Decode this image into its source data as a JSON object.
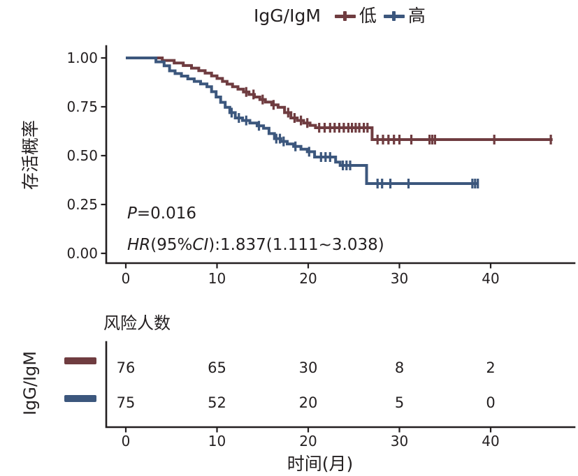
{
  "chart_data": {
    "type": "line",
    "subtype": "kaplan_meier_step",
    "title": "IgG/IgM",
    "xlabel": "时间(月)",
    "ylabel": "存活概率",
    "xlim": [
      0,
      49
    ],
    "ylim": [
      0,
      1
    ],
    "xticks": [
      0,
      10,
      20,
      30,
      40
    ],
    "ytick_values": [
      0,
      0.25,
      0.5,
      0.75,
      1
    ],
    "ytick_labels": [
      "0.00",
      "0.25",
      "0.50",
      "0.75",
      "1.00"
    ],
    "grid": false,
    "legend_position": "top",
    "axis_color": "#231f20",
    "annotations": {
      "p_italic": "P",
      "p_rest": "=0.016",
      "hr_italic": "HR",
      "hr_paren": "(95%",
      "ci_italic": "CI",
      "hr_rest": "):1.837(1.111~3.038)"
    },
    "series": [
      {
        "key": "low",
        "name": "低",
        "color": "#6F3C40",
        "steps": [
          [
            0,
            1
          ],
          [
            4,
            0.987
          ],
          [
            5.3,
            0.974
          ],
          [
            6.3,
            0.961
          ],
          [
            7.2,
            0.948
          ],
          [
            8,
            0.935
          ],
          [
            8.7,
            0.922
          ],
          [
            9.4,
            0.908
          ],
          [
            10,
            0.895
          ],
          [
            10.6,
            0.88
          ],
          [
            11.1,
            0.866
          ],
          [
            11.7,
            0.853
          ],
          [
            12.3,
            0.84
          ],
          [
            12.9,
            0.826
          ],
          [
            13.5,
            0.813
          ],
          [
            14.1,
            0.8
          ],
          [
            14.7,
            0.787
          ],
          [
            15.3,
            0.774
          ],
          [
            16,
            0.76
          ],
          [
            16.7,
            0.747
          ],
          [
            17.4,
            0.72
          ],
          [
            18.1,
            0.693
          ],
          [
            18.8,
            0.68
          ],
          [
            19.5,
            0.667
          ],
          [
            20.2,
            0.655
          ],
          [
            20.8,
            0.643
          ],
          [
            27,
            0.582
          ],
          [
            46.8,
            0.582
          ]
        ],
        "censor_times": [
          13.2,
          14,
          15,
          16.2,
          17.8,
          18.5,
          19.2,
          19.9,
          21.2,
          21.8,
          22.4,
          22.9,
          23.4,
          23.9,
          24.4,
          24.8,
          25.2,
          25.6,
          26.1,
          26.5,
          27.6,
          28.2,
          28.8,
          29.4,
          30,
          31.3,
          33.3,
          33.6,
          33.9,
          40.4,
          46.6
        ]
      },
      {
        "key": "high",
        "name": "高",
        "color": "#3C577D",
        "steps": [
          [
            0,
            1
          ],
          [
            3.3,
            0.98
          ],
          [
            4.2,
            0.96
          ],
          [
            4.8,
            0.934
          ],
          [
            5.4,
            0.92
          ],
          [
            6.1,
            0.907
          ],
          [
            6.8,
            0.893
          ],
          [
            7.5,
            0.88
          ],
          [
            8.2,
            0.867
          ],
          [
            8.9,
            0.853
          ],
          [
            9.4,
            0.827
          ],
          [
            9.9,
            0.8
          ],
          [
            10.4,
            0.773
          ],
          [
            10.9,
            0.747
          ],
          [
            11.4,
            0.72
          ],
          [
            12,
            0.693
          ],
          [
            12.8,
            0.68
          ],
          [
            13.6,
            0.667
          ],
          [
            14.4,
            0.653
          ],
          [
            15.1,
            0.64
          ],
          [
            15.7,
            0.613
          ],
          [
            16.3,
            0.587
          ],
          [
            17,
            0.573
          ],
          [
            17.7,
            0.56
          ],
          [
            18.4,
            0.547
          ],
          [
            19.2,
            0.533
          ],
          [
            19.9,
            0.52
          ],
          [
            20.7,
            0.493
          ],
          [
            23,
            0.467
          ],
          [
            23.5,
            0.45
          ],
          [
            26.4,
            0.357
          ],
          [
            38.7,
            0.357
          ]
        ],
        "censor_times": [
          11.6,
          12.4,
          13.2,
          14.6,
          16.5,
          16.9,
          17.3,
          18.6,
          20.1,
          21.4,
          21.9,
          22.4,
          23.8,
          24.2,
          24.6,
          27.6,
          28.1,
          29,
          31,
          38,
          38.3,
          38.6
        ]
      }
    ],
    "risk_table": {
      "title": "风险人数",
      "group_label": "IgG/IgM",
      "times": [
        0,
        10,
        20,
        30,
        40
      ],
      "rows": [
        {
          "key": "low",
          "name": "低",
          "color": "#6F3C40",
          "counts": [
            76,
            65,
            30,
            8,
            2
          ]
        },
        {
          "key": "high",
          "name": "高",
          "color": "#3C577D",
          "counts": [
            75,
            52,
            20,
            5,
            0
          ]
        }
      ]
    }
  }
}
